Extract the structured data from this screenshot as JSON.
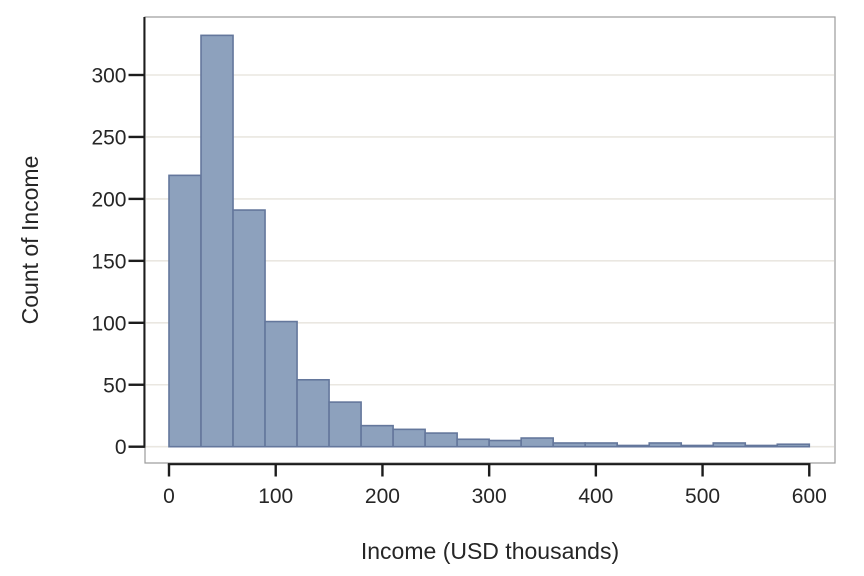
{
  "chart_data": {
    "type": "bar",
    "subtype": "histogram",
    "title": "",
    "xlabel": "Income (USD thousands)",
    "ylabel": "Count of Income",
    "bin_width": 30,
    "bins": [
      {
        "x0": 0,
        "x1": 30,
        "count": 219
      },
      {
        "x0": 30,
        "x1": 60,
        "count": 332
      },
      {
        "x0": 60,
        "x1": 90,
        "count": 191
      },
      {
        "x0": 90,
        "x1": 120,
        "count": 101
      },
      {
        "x0": 120,
        "x1": 150,
        "count": 54
      },
      {
        "x0": 150,
        "x1": 180,
        "count": 36
      },
      {
        "x0": 180,
        "x1": 210,
        "count": 17
      },
      {
        "x0": 210,
        "x1": 240,
        "count": 14
      },
      {
        "x0": 240,
        "x1": 270,
        "count": 11
      },
      {
        "x0": 270,
        "x1": 300,
        "count": 6
      },
      {
        "x0": 300,
        "x1": 330,
        "count": 5
      },
      {
        "x0": 330,
        "x1": 360,
        "count": 7
      },
      {
        "x0": 360,
        "x1": 390,
        "count": 3
      },
      {
        "x0": 390,
        "x1": 420,
        "count": 3
      },
      {
        "x0": 420,
        "x1": 450,
        "count": 1
      },
      {
        "x0": 450,
        "x1": 480,
        "count": 3
      },
      {
        "x0": 480,
        "x1": 510,
        "count": 1
      },
      {
        "x0": 510,
        "x1": 540,
        "count": 3
      },
      {
        "x0": 540,
        "x1": 570,
        "count": 1
      },
      {
        "x0": 570,
        "x1": 600,
        "count": 2
      }
    ],
    "x_ticks": [
      0,
      100,
      200,
      300,
      400,
      500,
      600
    ],
    "y_ticks": [
      0,
      50,
      100,
      150,
      200,
      250,
      300
    ],
    "xlim": [
      0,
      600
    ],
    "ylim": [
      0,
      345
    ],
    "grid": "horizontal",
    "legend": null,
    "colors": {
      "bar_fill": "#8da1bd",
      "bar_stroke": "#64779c",
      "grid": "#eae7e1",
      "axis": "#1c1c1c",
      "border": "#9b9b9b",
      "text": "#262626",
      "background": "#ffffff"
    }
  }
}
